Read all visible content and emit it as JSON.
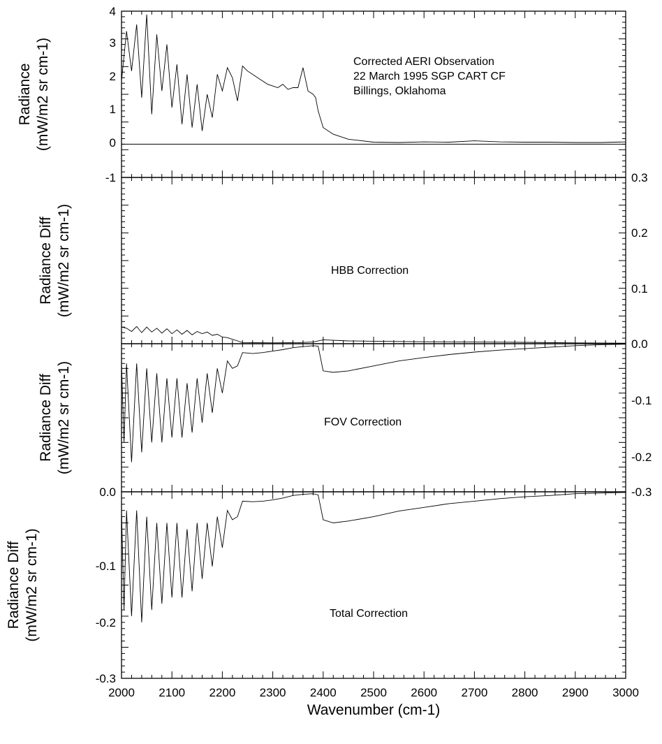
{
  "chart_data": [
    {
      "id": "observation",
      "type": "line",
      "ylabel_line1": "Radiance",
      "ylabel_line2": "(mW/m2 sr cm-1)",
      "annotation_lines": [
        "Corrected AERI Observation",
        "22 March 1995  SGP CART CF",
        "Billings, Oklahoma"
      ],
      "ylim": [
        -1,
        4
      ],
      "yticks_left": [
        "4",
        "3",
        "2",
        "1",
        "0",
        "-1"
      ],
      "yticks_right": [],
      "zero_line": true,
      "xlim": [
        2000,
        3000
      ],
      "x": [
        2000,
        2010,
        2020,
        2030,
        2040,
        2050,
        2060,
        2070,
        2080,
        2090,
        2100,
        2110,
        2120,
        2130,
        2140,
        2150,
        2160,
        2170,
        2180,
        2190,
        2200,
        2210,
        2220,
        2230,
        2240,
        2250,
        2260,
        2270,
        2280,
        2290,
        2300,
        2310,
        2320,
        2330,
        2340,
        2350,
        2360,
        2370,
        2380,
        2385,
        2390,
        2400,
        2420,
        2450,
        2500,
        2550,
        2600,
        2650,
        2700,
        2750,
        2800,
        2850,
        2900,
        2950,
        3000
      ],
      "y": [
        1.9,
        3.4,
        2.2,
        3.6,
        1.4,
        3.9,
        0.9,
        3.3,
        1.6,
        3.0,
        1.1,
        2.4,
        0.6,
        2.1,
        0.5,
        1.8,
        0.4,
        1.5,
        0.8,
        2.1,
        1.6,
        2.3,
        2.0,
        1.3,
        2.35,
        2.2,
        2.1,
        2.0,
        1.9,
        1.8,
        1.75,
        1.7,
        1.8,
        1.65,
        1.7,
        1.7,
        2.3,
        1.6,
        1.5,
        1.4,
        1.0,
        0.5,
        0.3,
        0.15,
        0.06,
        0.05,
        0.07,
        0.06,
        0.1,
        0.07,
        0.06,
        0.06,
        0.05,
        0.05,
        0.07
      ]
    },
    {
      "id": "hbb",
      "type": "line",
      "ylabel_line1": "Radiance Diff",
      "ylabel_line2": "(mW/m2 sr cm-1)",
      "annotation_lines": [
        "HBB Correction"
      ],
      "ylim": [
        0.0,
        0.3
      ],
      "yticks_left": [],
      "yticks_right": [
        "0.3",
        "0.2",
        "0.1",
        "0.0"
      ],
      "zero_line": false,
      "xlim": [
        2000,
        3000
      ],
      "x": [
        2000,
        2010,
        2020,
        2030,
        2040,
        2050,
        2060,
        2070,
        2080,
        2090,
        2100,
        2110,
        2120,
        2130,
        2140,
        2150,
        2160,
        2170,
        2180,
        2190,
        2200,
        2210,
        2220,
        2230,
        2240,
        2300,
        2350,
        2380,
        2400,
        2450,
        2500,
        2600,
        2700,
        2800,
        2900,
        3000
      ],
      "y": [
        0.03,
        0.028,
        0.022,
        0.031,
        0.02,
        0.03,
        0.021,
        0.028,
        0.019,
        0.027,
        0.018,
        0.025,
        0.017,
        0.024,
        0.016,
        0.022,
        0.018,
        0.021,
        0.015,
        0.017,
        0.012,
        0.011,
        0.008,
        0.005,
        0.002,
        0.0015,
        0.002,
        0.003,
        0.007,
        0.005,
        0.0045,
        0.0035,
        0.003,
        0.0025,
        0.0015,
        0.001
      ]
    },
    {
      "id": "fov",
      "type": "line",
      "ylabel_line1": "Radiance Diff",
      "ylabel_line2": "(mW/m2 sr cm-1)",
      "annotation_lines": [
        "FOV Correction"
      ],
      "ylim": [
        -0.3,
        0.0
      ],
      "yticks_left": [
        "0.0"
      ],
      "yticks_right": [
        "-0.1",
        "-0.2",
        "-0.3"
      ],
      "zero_line": false,
      "xlim": [
        2000,
        3000
      ],
      "x": [
        2000,
        2005,
        2010,
        2020,
        2030,
        2040,
        2050,
        2060,
        2070,
        2080,
        2090,
        2100,
        2110,
        2120,
        2130,
        2140,
        2150,
        2160,
        2170,
        2180,
        2190,
        2200,
        2210,
        2220,
        2230,
        2240,
        2260,
        2280,
        2300,
        2320,
        2340,
        2360,
        2380,
        2390,
        2400,
        2420,
        2450,
        2500,
        2550,
        2600,
        2650,
        2700,
        2750,
        2800,
        2850,
        2900,
        2950,
        3000
      ],
      "y": [
        -0.04,
        -0.2,
        -0.04,
        -0.24,
        -0.04,
        -0.22,
        -0.05,
        -0.2,
        -0.06,
        -0.2,
        -0.07,
        -0.19,
        -0.07,
        -0.19,
        -0.08,
        -0.18,
        -0.07,
        -0.16,
        -0.06,
        -0.14,
        -0.05,
        -0.1,
        -0.035,
        -0.05,
        -0.045,
        -0.018,
        -0.02,
        -0.018,
        -0.015,
        -0.012,
        -0.008,
        -0.006,
        -0.004,
        -0.005,
        -0.055,
        -0.058,
        -0.055,
        -0.045,
        -0.035,
        -0.028,
        -0.022,
        -0.017,
        -0.013,
        -0.01,
        -0.007,
        -0.004,
        -0.002,
        -0.001
      ]
    },
    {
      "id": "total",
      "type": "line",
      "ylabel_line1": "Radiance Diff",
      "ylabel_line2": "(mW/m2 sr cm-1)",
      "annotation_lines": [
        "Total Correction"
      ],
      "ylim": [
        -0.3,
        0.0
      ],
      "yticks_left": [
        "-0.1",
        "-0.2",
        "-0.3"
      ],
      "yticks_right": [],
      "zero_line": false,
      "xlim": [
        2000,
        3000
      ],
      "xticks": [
        "2000",
        "2100",
        "2200",
        "2300",
        "2400",
        "2500",
        "2600",
        "2700",
        "2800",
        "2900",
        "3000"
      ],
      "xlabel": "Wavenumber (cm-1)",
      "x": [
        2000,
        2005,
        2010,
        2020,
        2030,
        2040,
        2050,
        2060,
        2070,
        2080,
        2090,
        2100,
        2110,
        2120,
        2130,
        2140,
        2150,
        2160,
        2170,
        2180,
        2190,
        2200,
        2210,
        2220,
        2230,
        2240,
        2260,
        2280,
        2300,
        2320,
        2340,
        2360,
        2380,
        2390,
        2400,
        2420,
        2450,
        2500,
        2550,
        2600,
        2650,
        2700,
        2750,
        2800,
        2850,
        2900,
        2950,
        3000
      ],
      "y": [
        -0.03,
        -0.19,
        -0.03,
        -0.2,
        -0.03,
        -0.21,
        -0.04,
        -0.19,
        -0.05,
        -0.18,
        -0.05,
        -0.17,
        -0.05,
        -0.17,
        -0.06,
        -0.16,
        -0.05,
        -0.14,
        -0.05,
        -0.12,
        -0.04,
        -0.09,
        -0.03,
        -0.045,
        -0.04,
        -0.015,
        -0.016,
        -0.015,
        -0.013,
        -0.01,
        -0.006,
        -0.004,
        -0.003,
        -0.005,
        -0.045,
        -0.05,
        -0.047,
        -0.04,
        -0.031,
        -0.025,
        -0.019,
        -0.015,
        -0.011,
        -0.008,
        -0.006,
        -0.003,
        -0.002,
        -0.001
      ]
    }
  ]
}
